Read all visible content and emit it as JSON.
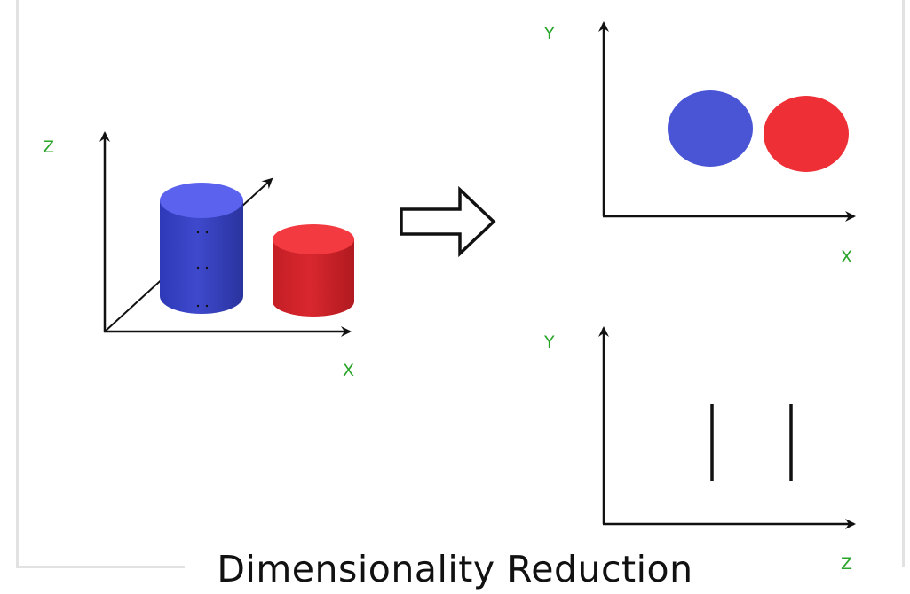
{
  "caption": "Dimensionality Reduction",
  "labels": {
    "left_z": "Z",
    "left_x": "X",
    "top_right_y": "Y",
    "top_right_x": "X",
    "bottom_right_y": "Y",
    "bottom_right_z": "Z"
  },
  "colors": {
    "blue_object": "#4a55d6",
    "red_object": "#ee2f36",
    "axis_label": "#2aa52a",
    "axis": "#111111"
  }
}
